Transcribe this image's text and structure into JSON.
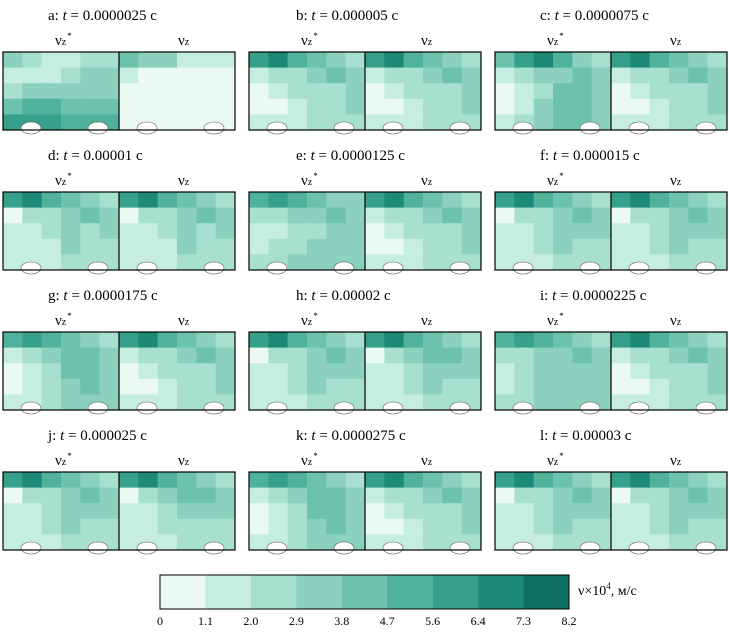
{
  "chart_data": {
    "type": "heatmap",
    "panels": [
      {
        "letter": "a:",
        "t_label": "t",
        "t_value": "= 0.0000025 с",
        "left_label": "ν",
        "left_sub": "z",
        "left_sup": "*",
        "right_label": "ν",
        "right_sub": "z",
        "left_levels": [
          [
            3,
            2,
            1,
            1,
            2,
            2
          ],
          [
            1,
            1,
            1,
            2,
            3,
            3
          ],
          [
            2,
            3,
            3,
            3,
            3,
            3
          ],
          [
            4,
            5,
            5,
            4,
            4,
            4
          ],
          [
            6,
            6,
            6,
            5,
            5,
            5
          ]
        ],
        "right_levels": [
          [
            4,
            3,
            3,
            1,
            1,
            1
          ],
          [
            1,
            0,
            0,
            0,
            0,
            0
          ],
          [
            0,
            0,
            0,
            0,
            0,
            0
          ],
          [
            0,
            0,
            0,
            0,
            0,
            0
          ],
          [
            0,
            0,
            0,
            0,
            0,
            0
          ]
        ]
      },
      {
        "letter": "b:",
        "t_label": "t",
        "t_value": "= 0.000005 с",
        "left_label": "ν",
        "left_sub": "z",
        "left_sup": "*",
        "right_label": "ν",
        "right_sub": "z",
        "left_levels": [
          [
            6,
            7,
            5,
            4,
            3,
            2
          ],
          [
            1,
            2,
            2,
            3,
            4,
            3
          ],
          [
            0,
            1,
            2,
            2,
            2,
            3
          ],
          [
            0,
            0,
            1,
            2,
            2,
            3
          ],
          [
            1,
            1,
            1,
            2,
            2,
            2
          ]
        ],
        "right_levels": [
          [
            6,
            7,
            5,
            4,
            3,
            2
          ],
          [
            1,
            2,
            2,
            3,
            4,
            3
          ],
          [
            0,
            1,
            2,
            2,
            2,
            3
          ],
          [
            0,
            0,
            1,
            2,
            2,
            3
          ],
          [
            1,
            1,
            1,
            2,
            2,
            2
          ]
        ]
      },
      {
        "letter": "c:",
        "t_label": "t",
        "t_value": "= 0.0000075 с",
        "left_label": "ν",
        "left_sub": "z",
        "left_sup": "*",
        "right_label": "ν",
        "right_sub": "z",
        "left_levels": [
          [
            4,
            6,
            7,
            5,
            3,
            2
          ],
          [
            1,
            2,
            3,
            3,
            4,
            3
          ],
          [
            0,
            1,
            2,
            4,
            4,
            3
          ],
          [
            0,
            1,
            3,
            4,
            4,
            3
          ],
          [
            1,
            2,
            3,
            4,
            4,
            3
          ]
        ],
        "right_levels": [
          [
            6,
            7,
            5,
            4,
            3,
            2
          ],
          [
            1,
            2,
            2,
            3,
            4,
            3
          ],
          [
            0,
            1,
            2,
            2,
            2,
            3
          ],
          [
            0,
            0,
            1,
            2,
            2,
            3
          ],
          [
            1,
            1,
            1,
            2,
            2,
            2
          ]
        ]
      },
      {
        "letter": "d:",
        "t_label": "t",
        "t_value": "= 0.00001 с",
        "left_label": "ν",
        "left_sub": "z",
        "left_sup": "*",
        "right_label": "ν",
        "right_sub": "z",
        "left_levels": [
          [
            6,
            7,
            5,
            4,
            3,
            2
          ],
          [
            0,
            2,
            2,
            3,
            4,
            3
          ],
          [
            1,
            1,
            2,
            3,
            2,
            3
          ],
          [
            1,
            1,
            1,
            3,
            2,
            2
          ],
          [
            1,
            1,
            1,
            2,
            2,
            2
          ]
        ],
        "right_levels": [
          [
            6,
            7,
            5,
            4,
            3,
            2
          ],
          [
            0,
            2,
            2,
            3,
            4,
            3
          ],
          [
            1,
            1,
            2,
            3,
            2,
            3
          ],
          [
            1,
            1,
            1,
            3,
            2,
            2
          ],
          [
            1,
            1,
            1,
            2,
            2,
            2
          ]
        ]
      },
      {
        "letter": "e:",
        "t_label": "t",
        "t_value": "= 0.0000125 с",
        "left_label": "ν",
        "left_sub": "z",
        "left_sup": "*",
        "right_label": "ν",
        "right_sub": "z",
        "left_levels": [
          [
            5,
            6,
            5,
            4,
            3,
            3
          ],
          [
            2,
            2,
            3,
            3,
            4,
            3
          ],
          [
            1,
            1,
            2,
            2,
            3,
            3
          ],
          [
            1,
            2,
            2,
            3,
            3,
            3
          ],
          [
            2,
            2,
            3,
            3,
            3,
            3
          ]
        ],
        "right_levels": [
          [
            6,
            7,
            5,
            4,
            3,
            2
          ],
          [
            1,
            2,
            2,
            3,
            4,
            3
          ],
          [
            0,
            1,
            2,
            2,
            2,
            3
          ],
          [
            0,
            0,
            1,
            2,
            2,
            3
          ],
          [
            1,
            1,
            1,
            2,
            2,
            2
          ]
        ]
      },
      {
        "letter": "f:",
        "t_label": "t",
        "t_value": "= 0.000015 с",
        "left_label": "ν",
        "left_sub": "z",
        "left_sup": "*",
        "right_label": "ν",
        "right_sub": "z",
        "left_levels": [
          [
            6,
            7,
            5,
            4,
            3,
            2
          ],
          [
            0,
            2,
            2,
            3,
            4,
            3
          ],
          [
            1,
            1,
            2,
            3,
            3,
            3
          ],
          [
            1,
            1,
            2,
            3,
            2,
            2
          ],
          [
            1,
            1,
            1,
            2,
            2,
            2
          ]
        ],
        "right_levels": [
          [
            6,
            7,
            5,
            4,
            3,
            2
          ],
          [
            0,
            2,
            2,
            3,
            4,
            3
          ],
          [
            1,
            1,
            2,
            3,
            3,
            3
          ],
          [
            1,
            1,
            2,
            3,
            2,
            2
          ],
          [
            1,
            1,
            1,
            2,
            2,
            2
          ]
        ]
      },
      {
        "letter": "g:",
        "t_label": "t",
        "t_value": "= 0.0000175 с",
        "left_label": "ν",
        "left_sub": "z",
        "left_sup": "*",
        "right_label": "ν",
        "right_sub": "z",
        "left_levels": [
          [
            5,
            6,
            5,
            4,
            3,
            2
          ],
          [
            1,
            2,
            3,
            4,
            4,
            3
          ],
          [
            0,
            1,
            2,
            4,
            4,
            3
          ],
          [
            0,
            1,
            2,
            3,
            4,
            3
          ],
          [
            1,
            1,
            2,
            3,
            3,
            3
          ]
        ],
        "right_levels": [
          [
            6,
            7,
            5,
            4,
            3,
            2
          ],
          [
            1,
            2,
            2,
            3,
            4,
            3
          ],
          [
            0,
            1,
            2,
            2,
            2,
            3
          ],
          [
            0,
            0,
            1,
            2,
            2,
            3
          ],
          [
            1,
            1,
            1,
            2,
            2,
            2
          ]
        ]
      },
      {
        "letter": "h:",
        "t_label": "t",
        "t_value": "= 0.00002 с",
        "left_label": "ν",
        "left_sub": "z",
        "left_sup": "*",
        "right_label": "ν",
        "right_sub": "z",
        "left_levels": [
          [
            6,
            7,
            5,
            4,
            3,
            2
          ],
          [
            0,
            2,
            2,
            3,
            4,
            3
          ],
          [
            1,
            1,
            2,
            3,
            3,
            3
          ],
          [
            1,
            1,
            2,
            3,
            2,
            2
          ],
          [
            1,
            1,
            1,
            2,
            2,
            2
          ]
        ],
        "right_levels": [
          [
            6,
            7,
            5,
            4,
            3,
            2
          ],
          [
            0,
            2,
            3,
            4,
            4,
            3
          ],
          [
            1,
            1,
            2,
            3,
            3,
            3
          ],
          [
            1,
            1,
            2,
            3,
            2,
            2
          ],
          [
            1,
            1,
            1,
            2,
            2,
            2
          ]
        ]
      },
      {
        "letter": "i:",
        "t_label": "t",
        "t_value": "= 0.0000225 с",
        "left_label": "ν",
        "left_sub": "z",
        "left_sup": "*",
        "right_label": "ν",
        "right_sub": "z",
        "left_levels": [
          [
            5,
            6,
            5,
            4,
            3,
            2
          ],
          [
            2,
            2,
            3,
            3,
            4,
            3
          ],
          [
            1,
            2,
            3,
            3,
            3,
            3
          ],
          [
            1,
            2,
            3,
            3,
            3,
            3
          ],
          [
            2,
            2,
            3,
            3,
            3,
            3
          ]
        ],
        "right_levels": [
          [
            6,
            7,
            5,
            4,
            3,
            2
          ],
          [
            1,
            2,
            2,
            3,
            4,
            3
          ],
          [
            0,
            1,
            2,
            2,
            2,
            3
          ],
          [
            0,
            0,
            1,
            2,
            2,
            3
          ],
          [
            1,
            1,
            1,
            2,
            2,
            2
          ]
        ]
      },
      {
        "letter": "j:",
        "t_label": "t",
        "t_value": "= 0.000025 с",
        "left_label": "ν",
        "left_sub": "z",
        "left_sup": "*",
        "right_label": "ν",
        "right_sub": "z",
        "left_levels": [
          [
            6,
            7,
            5,
            4,
            3,
            2
          ],
          [
            0,
            2,
            2,
            3,
            4,
            3
          ],
          [
            1,
            1,
            2,
            3,
            3,
            3
          ],
          [
            1,
            1,
            2,
            3,
            2,
            2
          ],
          [
            1,
            1,
            1,
            2,
            2,
            2
          ]
        ],
        "right_levels": [
          [
            6,
            7,
            5,
            4,
            3,
            2
          ],
          [
            0,
            2,
            3,
            4,
            4,
            3
          ],
          [
            1,
            1,
            2,
            3,
            3,
            3
          ],
          [
            1,
            1,
            2,
            2,
            2,
            2
          ],
          [
            1,
            1,
            1,
            2,
            2,
            2
          ]
        ]
      },
      {
        "letter": "k:",
        "t_label": "t",
        "t_value": "= 0.0000275 с",
        "left_label": "ν",
        "left_sub": "z",
        "left_sup": "*",
        "right_label": "ν",
        "right_sub": "z",
        "left_levels": [
          [
            5,
            6,
            5,
            4,
            3,
            2
          ],
          [
            1,
            2,
            3,
            4,
            4,
            3
          ],
          [
            0,
            1,
            2,
            4,
            4,
            3
          ],
          [
            0,
            1,
            2,
            3,
            4,
            3
          ],
          [
            1,
            1,
            2,
            3,
            3,
            3
          ]
        ],
        "right_levels": [
          [
            6,
            7,
            5,
            4,
            3,
            2
          ],
          [
            1,
            2,
            2,
            3,
            4,
            3
          ],
          [
            0,
            1,
            2,
            2,
            2,
            3
          ],
          [
            0,
            0,
            1,
            2,
            2,
            3
          ],
          [
            1,
            1,
            1,
            2,
            2,
            2
          ]
        ]
      },
      {
        "letter": "l:",
        "t_label": "t",
        "t_value": "= 0.00003 с",
        "left_label": "ν",
        "left_sub": "z",
        "left_sup": "*",
        "right_label": "ν",
        "right_sub": "z",
        "left_levels": [
          [
            6,
            7,
            5,
            4,
            3,
            2
          ],
          [
            0,
            2,
            2,
            3,
            4,
            3
          ],
          [
            1,
            1,
            2,
            3,
            3,
            3
          ],
          [
            1,
            1,
            2,
            3,
            2,
            2
          ],
          [
            1,
            1,
            1,
            2,
            2,
            2
          ]
        ],
        "right_levels": [
          [
            6,
            7,
            5,
            4,
            3,
            2
          ],
          [
            0,
            2,
            2,
            3,
            4,
            3
          ],
          [
            1,
            1,
            2,
            3,
            3,
            3
          ],
          [
            1,
            1,
            2,
            3,
            2,
            2
          ],
          [
            1,
            1,
            1,
            2,
            2,
            2
          ]
        ]
      }
    ],
    "colorbar": {
      "ticks": [
        "0",
        "1.1",
        "2.0",
        "2.9",
        "3.8",
        "4.7",
        "5.6",
        "6.4",
        "7.3",
        "8.2"
      ],
      "colors": [
        "#eafaf3",
        "#c6eee0",
        "#a8e0cf",
        "#8bd1bd",
        "#6dc2ab",
        "#50b29b",
        "#36a08a",
        "#1d8a78",
        "#0f6f63"
      ],
      "title": "ν×10",
      "title_sup": "4",
      "title_unit": ", м/с"
    }
  }
}
